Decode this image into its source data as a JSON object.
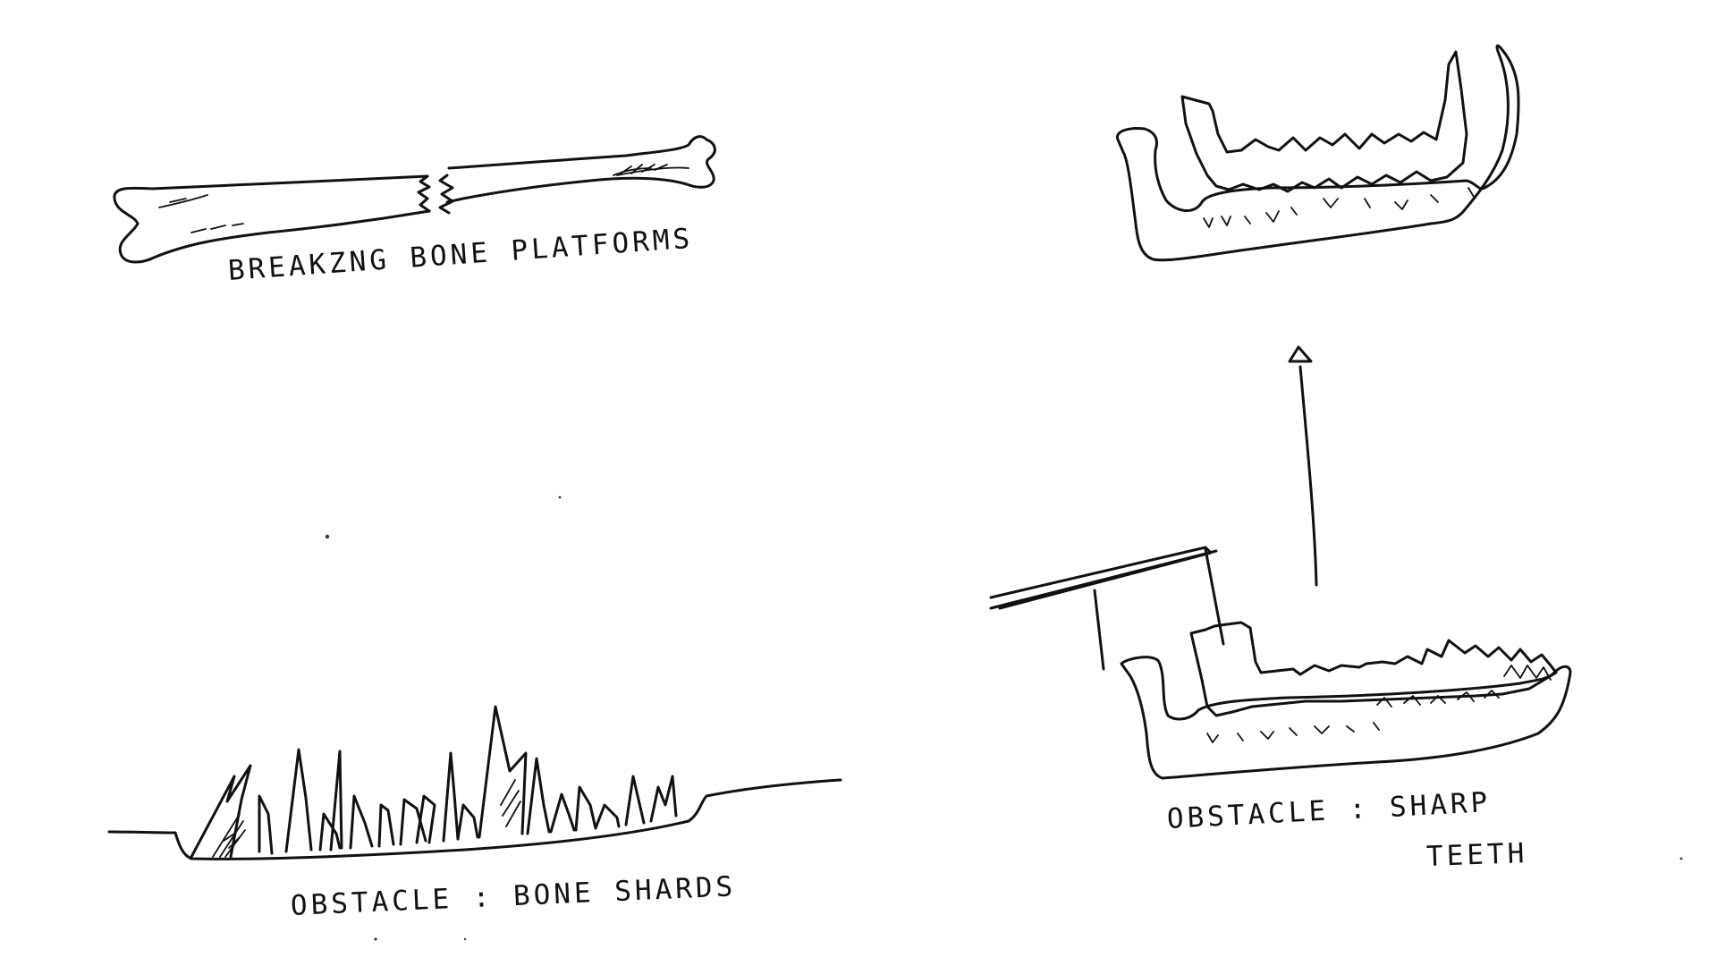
{
  "labels": {
    "platforms": "BREAKZNG BONE PLATFORMS",
    "shards": "OBSTACLE : BONE SHARDS",
    "teeth_line1": "OBSTACLE : SHARP",
    "teeth_line2": "TEETH"
  },
  "colors": {
    "ink": "#111111",
    "paper": "#ffffff"
  }
}
